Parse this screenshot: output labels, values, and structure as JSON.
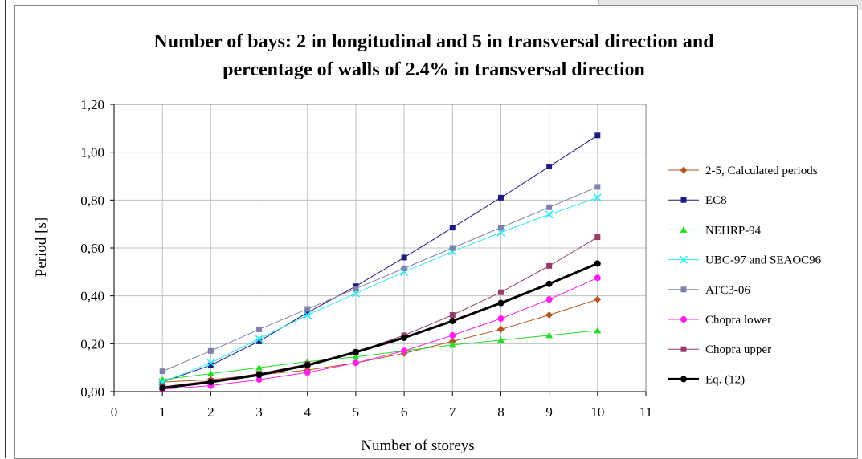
{
  "chart_data": {
    "type": "line",
    "title": [
      "Number of bays: 2 in longitudinal and 5 in transversal direction and",
      "percentage of walls of 2.4% in transversal direction"
    ],
    "xlabel": "Number of storeys",
    "ylabel": "Period [s]",
    "xlim": [
      0,
      11
    ],
    "ylim": [
      0,
      1.2
    ],
    "x_ticks": [
      "0",
      "1",
      "2",
      "3",
      "4",
      "5",
      "6",
      "7",
      "8",
      "9",
      "10",
      "11"
    ],
    "y_ticks": [
      "0,00",
      "0,20",
      "0,40",
      "0,60",
      "0,80",
      "1,00",
      "1,20"
    ],
    "grid": true,
    "legend_position": "right",
    "x": [
      1,
      2,
      3,
      4,
      5,
      6,
      7,
      8,
      9,
      10
    ],
    "series": [
      {
        "name": "2-5, Calculated  periods",
        "color": "#b5541f",
        "marker": "diamond",
        "width": 1,
        "values": [
          0.04,
          0.05,
          0.07,
          0.09,
          0.12,
          0.16,
          0.21,
          0.26,
          0.32,
          0.385
        ]
      },
      {
        "name": "EC8",
        "color": "#1c1c80",
        "marker": "square",
        "width": 1,
        "values": [
          0.04,
          0.11,
          0.21,
          0.33,
          0.44,
          0.56,
          0.685,
          0.81,
          0.94,
          1.07
        ]
      },
      {
        "name": "NEHRP-94",
        "color": "#22dd22",
        "marker": "triangle",
        "width": 1,
        "values": [
          0.05,
          0.075,
          0.1,
          0.125,
          0.145,
          0.17,
          0.195,
          0.215,
          0.235,
          0.255
        ]
      },
      {
        "name": "UBC-97 and SEAOC96",
        "color": "#30e8f0",
        "marker": "x",
        "width": 1,
        "values": [
          0.04,
          0.12,
          0.22,
          0.32,
          0.41,
          0.5,
          0.585,
          0.665,
          0.74,
          0.81
        ]
      },
      {
        "name": "ATC3-06",
        "color": "#8080aa",
        "marker": "square",
        "width": 1,
        "values": [
          0.085,
          0.17,
          0.26,
          0.345,
          0.43,
          0.515,
          0.6,
          0.685,
          0.77,
          0.855
        ]
      },
      {
        "name": "Chopra lower",
        "color": "#ff22ee",
        "marker": "circle",
        "width": 1,
        "values": [
          0.01,
          0.025,
          0.05,
          0.08,
          0.12,
          0.17,
          0.235,
          0.305,
          0.385,
          0.475
        ]
      },
      {
        "name": "Chopra upper",
        "color": "#963a6e",
        "marker": "square",
        "width": 1,
        "values": [
          0.02,
          0.045,
          0.075,
          0.115,
          0.165,
          0.235,
          0.32,
          0.415,
          0.525,
          0.645
        ]
      },
      {
        "name": "Eq. (12)",
        "color": "#000000",
        "marker": "circle",
        "width": 3,
        "values": [
          0.015,
          0.04,
          0.07,
          0.11,
          0.165,
          0.225,
          0.295,
          0.37,
          0.45,
          0.535
        ]
      }
    ]
  }
}
